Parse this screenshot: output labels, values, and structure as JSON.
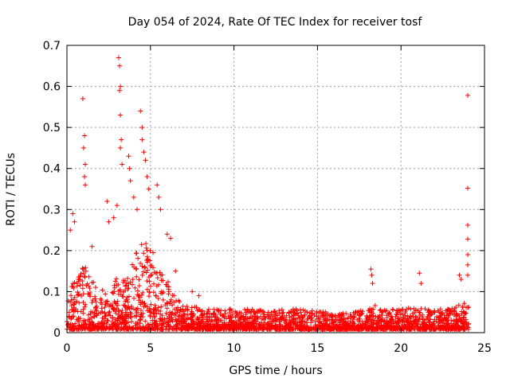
{
  "chart_data": {
    "type": "scatter",
    "title": "Day 054 of 2024, Rate Of TEC Index for receiver tosf",
    "xlabel": "GPS time / hours",
    "ylabel": "ROTI / TECUs",
    "xlim": [
      0,
      25
    ],
    "ylim": [
      0,
      0.7
    ],
    "xticks": [
      0,
      5,
      10,
      15,
      20,
      25
    ],
    "yticks": [
      0,
      0.1,
      0.2,
      0.3,
      0.4,
      0.5,
      0.6,
      0.7
    ],
    "xtick_labels": [
      "0",
      "5",
      "10",
      "15",
      "20",
      "25"
    ],
    "ytick_labels": [
      "0",
      "0.1",
      "0.2",
      "0.3",
      "0.4",
      "0.5",
      "0.6",
      "0.7"
    ],
    "grid": true,
    "marker": "+",
    "color": "#ff0000",
    "envelope": {
      "x": [
        0,
        0.5,
        1,
        1.5,
        2,
        2.5,
        3,
        3.5,
        4,
        4.5,
        5,
        5.5,
        6,
        6.5,
        7,
        7.5,
        8,
        9,
        10,
        11,
        12,
        13,
        14,
        15,
        16,
        17,
        18,
        18.5,
        19,
        20,
        21,
        21.5,
        22,
        23,
        23.5,
        24
      ],
      "typical_max": [
        0.09,
        0.12,
        0.16,
        0.12,
        0.1,
        0.09,
        0.13,
        0.12,
        0.18,
        0.22,
        0.2,
        0.16,
        0.13,
        0.08,
        0.06,
        0.06,
        0.05,
        0.05,
        0.05,
        0.05,
        0.045,
        0.05,
        0.05,
        0.045,
        0.04,
        0.04,
        0.05,
        0.06,
        0.05,
        0.05,
        0.055,
        0.05,
        0.05,
        0.05,
        0.06,
        0.07
      ]
    },
    "spikes": [
      {
        "x": 0.2,
        "y": 0.25
      },
      {
        "x": 0.35,
        "y": 0.29
      },
      {
        "x": 0.45,
        "y": 0.27
      },
      {
        "x": 0.95,
        "y": 0.57
      },
      {
        "x": 1.05,
        "y": 0.48
      },
      {
        "x": 1.0,
        "y": 0.45
      },
      {
        "x": 1.1,
        "y": 0.41
      },
      {
        "x": 1.05,
        "y": 0.38
      },
      {
        "x": 1.1,
        "y": 0.36
      },
      {
        "x": 1.5,
        "y": 0.21
      },
      {
        "x": 2.4,
        "y": 0.32
      },
      {
        "x": 2.5,
        "y": 0.27
      },
      {
        "x": 2.8,
        "y": 0.28
      },
      {
        "x": 3.0,
        "y": 0.31
      },
      {
        "x": 3.1,
        "y": 0.67
      },
      {
        "x": 3.15,
        "y": 0.65
      },
      {
        "x": 3.2,
        "y": 0.6
      },
      {
        "x": 3.15,
        "y": 0.59
      },
      {
        "x": 3.2,
        "y": 0.53
      },
      {
        "x": 3.25,
        "y": 0.47
      },
      {
        "x": 3.2,
        "y": 0.45
      },
      {
        "x": 3.3,
        "y": 0.41
      },
      {
        "x": 3.7,
        "y": 0.43
      },
      {
        "x": 3.75,
        "y": 0.4
      },
      {
        "x": 3.8,
        "y": 0.37
      },
      {
        "x": 4.0,
        "y": 0.33
      },
      {
        "x": 4.2,
        "y": 0.3
      },
      {
        "x": 4.4,
        "y": 0.54
      },
      {
        "x": 4.5,
        "y": 0.5
      },
      {
        "x": 4.5,
        "y": 0.47
      },
      {
        "x": 4.6,
        "y": 0.44
      },
      {
        "x": 4.7,
        "y": 0.42
      },
      {
        "x": 4.8,
        "y": 0.38
      },
      {
        "x": 4.9,
        "y": 0.35
      },
      {
        "x": 5.4,
        "y": 0.36
      },
      {
        "x": 5.5,
        "y": 0.33
      },
      {
        "x": 5.6,
        "y": 0.3
      },
      {
        "x": 6.0,
        "y": 0.24
      },
      {
        "x": 6.2,
        "y": 0.23
      },
      {
        "x": 6.5,
        "y": 0.15
      },
      {
        "x": 7.5,
        "y": 0.1
      },
      {
        "x": 7.9,
        "y": 0.09
      },
      {
        "x": 18.2,
        "y": 0.155
      },
      {
        "x": 18.25,
        "y": 0.14
      },
      {
        "x": 18.3,
        "y": 0.12
      },
      {
        "x": 21.1,
        "y": 0.145
      },
      {
        "x": 21.2,
        "y": 0.12
      },
      {
        "x": 23.5,
        "y": 0.14
      },
      {
        "x": 23.6,
        "y": 0.13
      },
      {
        "x": 24.0,
        "y": 0.578
      },
      {
        "x": 24.0,
        "y": 0.352
      },
      {
        "x": 24.0,
        "y": 0.262
      },
      {
        "x": 24.0,
        "y": 0.228
      },
      {
        "x": 24.0,
        "y": 0.19
      },
      {
        "x": 24.0,
        "y": 0.165
      },
      {
        "x": 24.0,
        "y": 0.14
      }
    ]
  }
}
